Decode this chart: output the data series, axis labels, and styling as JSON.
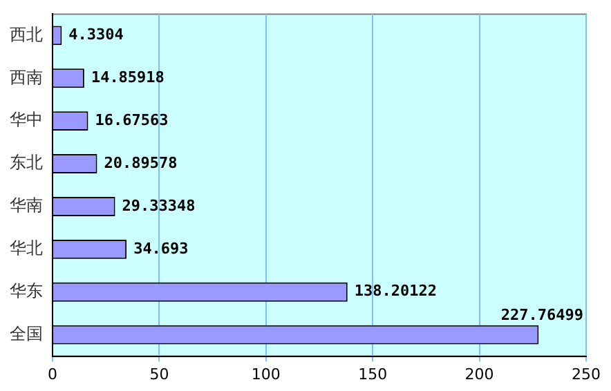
{
  "chart_data": {
    "type": "bar",
    "orientation": "horizontal",
    "categories": [
      "西北",
      "西南",
      "华中",
      "东北",
      "华南",
      "华北",
      "华东",
      "全国"
    ],
    "values": [
      4.3304,
      14.85918,
      16.67563,
      20.89578,
      29.33348,
      34.693,
      138.20122,
      227.76499
    ],
    "color": "#9999ff",
    "xlim": [
      0,
      250
    ],
    "xticks": [
      0,
      50,
      100,
      150,
      200,
      250
    ],
    "grid": "x",
    "legend": false,
    "data_labels": true
  }
}
